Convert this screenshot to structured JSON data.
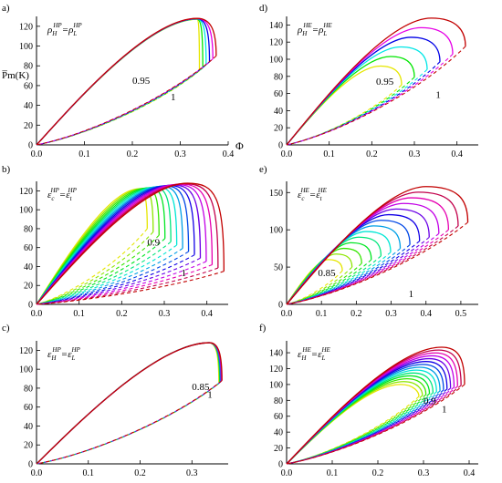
{
  "chart_data": [
    {
      "id": "a",
      "type": "line",
      "panel_letter": "a)",
      "label": {
        "base1": "ρ",
        "sub1": "H",
        "sup1": "HP",
        "eq": "=",
        "base2": "ρ",
        "sub2": "L",
        "sup2": "HP"
      },
      "ylabel": "P̅m(K)",
      "xlabel": "Φ",
      "xlim": [
        0,
        0.4
      ],
      "ylim": [
        0,
        130
      ],
      "xticks": [
        0.0,
        0.1,
        0.2,
        0.3,
        0.4
      ],
      "xtick_labels": [
        "0.0",
        "0.1",
        "0.2",
        "0.3",
        "0.4"
      ],
      "yticks": [
        0,
        20,
        40,
        60,
        80,
        100,
        120
      ],
      "ytick_labels": [
        "0",
        "20",
        "40",
        "60",
        "80",
        "100",
        "120"
      ],
      "n_curves": 6,
      "peak_x_start": 0.335,
      "peak_x_end": 0.335,
      "xmax_start": 0.34,
      "xmax_end": 0.375,
      "peak_y_start": 127,
      "peak_y_end": 128,
      "bottom_y_start": 75,
      "bottom_y_end": 90,
      "dash_all": true,
      "annotations": [
        {
          "text": "0.95",
          "x": 0.2,
          "y": 62
        },
        {
          "text": "1",
          "x": 0.28,
          "y": 45
        }
      ]
    },
    {
      "id": "b",
      "type": "line",
      "panel_letter": "b)",
      "label": {
        "base1": "ε",
        "sub1": "c",
        "sup1": "HP",
        "eq": "=",
        "base2": "ε",
        "sub2": "t",
        "sup2": "HP"
      },
      "ylabel": "",
      "xlabel": "",
      "xlim": [
        0,
        0.45
      ],
      "ylim": [
        0,
        130
      ],
      "xticks": [
        0.0,
        0.1,
        0.2,
        0.3,
        0.4
      ],
      "xtick_labels": [
        "0.0",
        "0.1",
        "0.2",
        "0.3",
        "0.4"
      ],
      "yticks": [
        0,
        20,
        40,
        60,
        80,
        100,
        120
      ],
      "ytick_labels": [
        "0",
        "20",
        "40",
        "60",
        "80",
        "100",
        "120"
      ],
      "n_curves": 14,
      "peak_x_start": 0.24,
      "peak_x_end": 0.355,
      "xmax_start": 0.26,
      "xmax_end": 0.44,
      "peak_y_start": 122,
      "peak_y_end": 128,
      "bottom_y_start": 80,
      "bottom_y_end": 35,
      "dash_all": true,
      "annotations": [
        {
          "text": "0.9",
          "x": 0.26,
          "y": 62
        },
        {
          "text": "1",
          "x": 0.34,
          "y": 30
        }
      ]
    },
    {
      "id": "c",
      "type": "line",
      "panel_letter": "c)",
      "label": {
        "base1": "ε",
        "sub1": "H",
        "sup1": "HP",
        "eq": "=",
        "base2": "ε",
        "sub2": "L",
        "sup2": "HP"
      },
      "ylabel": "",
      "xlabel": "",
      "xlim": [
        0,
        0.37
      ],
      "ylim": [
        0,
        130
      ],
      "xticks": [
        0.0,
        0.1,
        0.2,
        0.3
      ],
      "xtick_labels": [
        "0.0",
        "0.1",
        "0.2",
        "0.3"
      ],
      "yticks": [
        0,
        20,
        40,
        60,
        80,
        100,
        120
      ],
      "ytick_labels": [
        "0",
        "20",
        "40",
        "60",
        "80",
        "100",
        "120"
      ],
      "n_curves": 5,
      "peak_x_start": 0.333,
      "peak_x_end": 0.334,
      "xmax_start": 0.352,
      "xmax_end": 0.358,
      "peak_y_start": 128,
      "peak_y_end": 128,
      "bottom_y_start": 85,
      "bottom_y_end": 88,
      "dash_all": true,
      "annotations": [
        {
          "text": "0.85",
          "x": 0.3,
          "y": 78
        },
        {
          "text": "1",
          "x": 0.33,
          "y": 70
        }
      ]
    },
    {
      "id": "d",
      "type": "line",
      "panel_letter": "d)",
      "label": {
        "base1": "ρ",
        "sub1": "H",
        "sup1": "HE",
        "eq": "=",
        "base2": "ρ",
        "sub2": "L",
        "sup2": "HE"
      },
      "ylabel": "",
      "xlabel": "",
      "xlim": [
        0,
        0.45
      ],
      "ylim": [
        0,
        150
      ],
      "xticks": [
        0.0,
        0.1,
        0.2,
        0.3,
        0.4
      ],
      "xtick_labels": [
        "0.0",
        "0.1",
        "0.2",
        "0.3",
        "0.4"
      ],
      "yticks": [
        0,
        20,
        40,
        60,
        80,
        100,
        120,
        140
      ],
      "ytick_labels": [
        "0",
        "20",
        "40",
        "60",
        "80",
        "100",
        "120",
        "140"
      ],
      "n_curves": 6,
      "peak_x_start": 0.22,
      "peak_x_end": 0.34,
      "xmax_start": 0.27,
      "xmax_end": 0.42,
      "peak_y_start": 92,
      "peak_y_end": 148,
      "bottom_y_start": 70,
      "bottom_y_end": 115,
      "dash_all": true,
      "annotations": [
        {
          "text": "0.95",
          "x": 0.21,
          "y": 70
        },
        {
          "text": "1",
          "x": 0.35,
          "y": 55
        }
      ]
    },
    {
      "id": "e",
      "type": "line",
      "panel_letter": "e)",
      "label": {
        "base1": "ε",
        "sub1": "c",
        "sup1": "HE",
        "eq": "=",
        "base2": "ε",
        "sub2": "t",
        "sup2": "HE"
      },
      "ylabel": "",
      "xlabel": "",
      "xlim": [
        0,
        0.55
      ],
      "ylim": [
        0,
        165
      ],
      "xticks": [
        0.0,
        0.1,
        0.2,
        0.3,
        0.4,
        0.5
      ],
      "xtick_labels": [
        "0.0",
        "0.1",
        "0.2",
        "0.3",
        "0.4",
        "0.5"
      ],
      "yticks": [
        0,
        50,
        100,
        150
      ],
      "ytick_labels": [
        "0",
        "50",
        "100",
        "150"
      ],
      "n_curves": 14,
      "peak_x_start": 0.12,
      "peak_x_end": 0.4,
      "xmax_start": 0.16,
      "xmax_end": 0.52,
      "peak_y_start": 60,
      "peak_y_end": 158,
      "bottom_y_start": 45,
      "bottom_y_end": 110,
      "dash_all": true,
      "annotations": [
        {
          "text": "0.85",
          "x": 0.09,
          "y": 38
        },
        {
          "text": "1",
          "x": 0.35,
          "y": 10
        }
      ]
    },
    {
      "id": "f",
      "type": "line",
      "panel_letter": "f)",
      "label": {
        "base1": "ε",
        "sub1": "H",
        "sup1": "HE",
        "eq": "=",
        "base2": "ε",
        "sub2": "L",
        "sup2": "HE"
      },
      "ylabel": "",
      "xlabel": "",
      "xlim": [
        0,
        0.42
      ],
      "ylim": [
        0,
        155
      ],
      "xticks": [
        0.0,
        0.1,
        0.2,
        0.3,
        0.4
      ],
      "xtick_labels": [
        "0.0",
        "0.1",
        "0.2",
        "0.3",
        "0.4"
      ],
      "yticks": [
        0,
        20,
        40,
        60,
        80,
        100,
        120,
        140
      ],
      "ytick_labels": [
        "0",
        "20",
        "40",
        "60",
        "80",
        "100",
        "120",
        "140"
      ],
      "n_curves": 14,
      "peak_x_start": 0.25,
      "peak_x_end": 0.34,
      "xmax_start": 0.29,
      "xmax_end": 0.39,
      "peak_y_start": 100,
      "peak_y_end": 147,
      "bottom_y_start": 85,
      "bottom_y_end": 100,
      "dash_all": true,
      "annotations": [
        {
          "text": "0.9",
          "x": 0.3,
          "y": 75
        },
        {
          "text": "1",
          "x": 0.34,
          "y": 65
        }
      ]
    }
  ]
}
